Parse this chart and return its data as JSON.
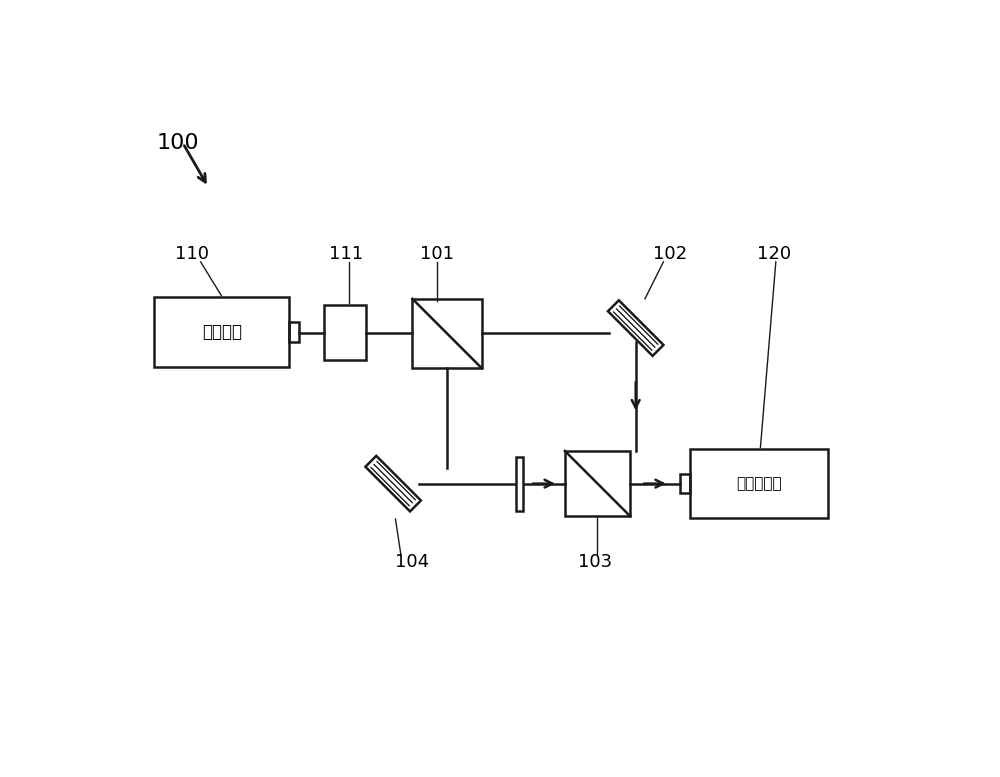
{
  "bg_color": "#ffffff",
  "line_color": "#1a1a1a",
  "label_100": "100",
  "label_110": "110",
  "label_111": "111",
  "label_101": "101",
  "label_102": "102",
  "label_103": "103",
  "label_104": "104",
  "label_120": "120",
  "text_laser": "激光光源",
  "text_sensor": "感測器陣列",
  "fig_width": 10.0,
  "fig_height": 7.77
}
